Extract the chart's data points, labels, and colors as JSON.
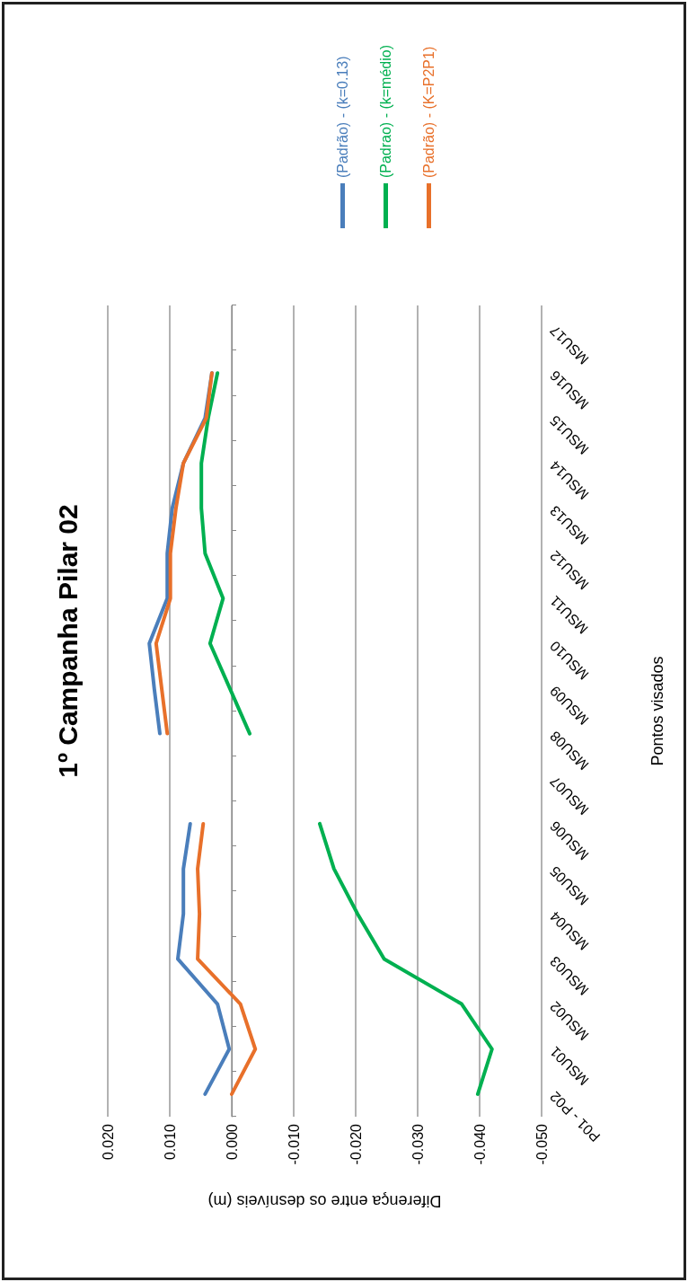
{
  "chart_data": {
    "type": "line",
    "orientation": "horizontal",
    "title": "1º Campanha Pilar 02",
    "xlabel": "Diferença entre os desníveis (m)",
    "ylabel": "Pontos visados",
    "categories": [
      "MSU17",
      "MSU16",
      "MSU15",
      "MSU14",
      "MSU13",
      "MSU12",
      "MSU11",
      "MSU10",
      "MSU09",
      "MSU08",
      "MSU07",
      "MSU06",
      "MSU05",
      "MSU04",
      "MSU03",
      "MSU02",
      "MSU01",
      "P01 - P02"
    ],
    "series": [
      {
        "name": "(Padrão) - (k=0.13)",
        "color": "#4a7ebb",
        "values": [
          null,
          0.0032,
          0.0043,
          0.0078,
          0.0096,
          0.0104,
          0.0104,
          0.0133,
          0.0125,
          0.0116,
          null,
          0.0067,
          0.0078,
          0.0078,
          0.0087,
          0.0023,
          0.0004,
          0.0043
        ]
      },
      {
        "name": "(Padrao) - (k=médio)",
        "color": "#00b050",
        "values": [
          null,
          0.0023,
          0.0038,
          0.0049,
          0.0049,
          0.0043,
          0.0014,
          0.0035,
          0.0003,
          -0.0029,
          null,
          -0.0142,
          -0.0165,
          -0.0203,
          -0.0246,
          -0.0371,
          -0.042,
          -0.0397
        ]
      },
      {
        "name": "(Padrão) - (K=P2P1)",
        "color": "#e8702a",
        "values": [
          null,
          0.0032,
          0.0041,
          0.0078,
          0.009,
          0.0099,
          0.0099,
          0.0122,
          0.0113,
          0.0104,
          null,
          0.0046,
          0.0055,
          0.0052,
          0.0055,
          -0.0014,
          -0.0038,
          0.0
        ]
      }
    ],
    "xlim": [
      0.02,
      -0.05
    ],
    "xticks": [
      {
        "value": 0.02,
        "label": "0.020"
      },
      {
        "value": 0.01,
        "label": "0.010"
      },
      {
        "value": 0,
        "label": "0.000"
      },
      {
        "value": -0.01,
        "label": "-0.010"
      },
      {
        "value": -0.02,
        "label": "-0.020"
      },
      {
        "value": -0.03,
        "label": "-0.030"
      },
      {
        "value": -0.04,
        "label": "-0.040"
      },
      {
        "value": -0.05,
        "label": "-0.050"
      }
    ],
    "grid": "x",
    "legend": "right",
    "marker": "none",
    "line_style": "solid"
  }
}
